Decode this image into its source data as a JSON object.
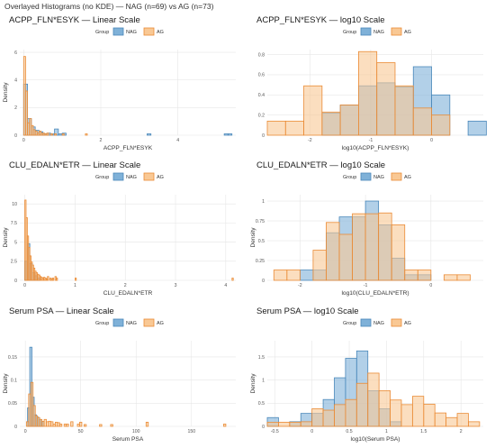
{
  "page_title": "Overlayed Histograms (no KDE) — NAG (n=69) vs AG (n=73)",
  "colors": {
    "NAG_fill": "#7fb1d8",
    "NAG_stroke": "#4a88ba",
    "AG_fill": "#f9c894",
    "AG_stroke": "#ea8b35",
    "overlap_fill": "#b6a698"
  },
  "legend": {
    "title": "Group",
    "labels": [
      "NAG",
      "AG"
    ]
  },
  "chart_data": [
    {
      "type": "bar",
      "title": "ACPP_FLN*ESYK — Linear Scale",
      "xlabel": "ACPP_FLN*ESYK",
      "ylabel": "Density",
      "xlim": [
        -0.1,
        5.5
      ],
      "ylim": [
        0,
        6.2
      ],
      "xticks": [
        0,
        2,
        4
      ],
      "yticks": [
        0,
        2,
        4,
        6
      ],
      "series": [
        {
          "name": "NAG",
          "bins": [
            [
              0.0,
              0.1,
              3.7
            ],
            [
              0.1,
              0.2,
              1.2
            ],
            [
              0.2,
              0.3,
              0.6
            ],
            [
              0.3,
              0.4,
              0.35
            ],
            [
              0.4,
              0.5,
              0.25
            ],
            [
              0.5,
              0.6,
              0.1
            ],
            [
              0.6,
              0.7,
              0.15
            ],
            [
              0.7,
              0.8,
              0.1
            ],
            [
              0.8,
              0.9,
              0.45
            ],
            [
              0.9,
              1.0,
              0.1
            ],
            [
              1.0,
              1.1,
              0.15
            ],
            [
              3.2,
              3.3,
              0.1
            ],
            [
              5.2,
              5.3,
              0.1
            ],
            [
              5.3,
              5.4,
              0.1
            ]
          ]
        },
        {
          "name": "AG",
          "bins": [
            [
              0.0,
              0.05,
              5.7
            ],
            [
              0.05,
              0.1,
              3.2
            ],
            [
              0.1,
              0.15,
              0.9
            ],
            [
              0.15,
              0.2,
              1.2
            ],
            [
              0.2,
              0.25,
              0.7
            ],
            [
              0.25,
              0.3,
              0.4
            ],
            [
              0.3,
              0.35,
              0.3
            ],
            [
              0.35,
              0.4,
              0.15
            ],
            [
              0.4,
              0.45,
              0.3
            ],
            [
              0.45,
              0.5,
              0.15
            ],
            [
              0.5,
              0.55,
              0.15
            ],
            [
              0.55,
              0.6,
              0.1
            ],
            [
              0.6,
              0.65,
              0.15
            ],
            [
              0.7,
              0.75,
              0.1
            ],
            [
              0.8,
              0.85,
              0.1
            ],
            [
              1.0,
              1.05,
              0.1
            ],
            [
              1.6,
              1.65,
              0.1
            ]
          ]
        }
      ]
    },
    {
      "type": "bar",
      "title": "ACPP_FLN*ESYK — log10 Scale",
      "xlabel": "log10(ACPP_FLN*ESYK)",
      "ylabel": "",
      "xlim": [
        -2.7,
        0.85
      ],
      "ylim": [
        0,
        0.85
      ],
      "xticks": [
        -2,
        -1,
        0
      ],
      "yticks": [
        0,
        0.2,
        0.4,
        0.6,
        0.8
      ],
      "series": [
        {
          "name": "NAG",
          "bins": [
            [
              -1.8,
              -1.5,
              0.22
            ],
            [
              -1.5,
              -1.2,
              0.3
            ],
            [
              -1.2,
              -0.9,
              0.49
            ],
            [
              -0.9,
              -0.6,
              0.52
            ],
            [
              -0.6,
              -0.3,
              0.48
            ],
            [
              -0.3,
              0.0,
              0.68
            ],
            [
              0.0,
              0.3,
              0.4
            ],
            [
              0.3,
              0.6,
              0.0
            ],
            [
              0.6,
              0.9,
              0.14
            ]
          ]
        },
        {
          "name": "AG",
          "bins": [
            [
              -2.7,
              -2.4,
              0.14
            ],
            [
              -2.4,
              -2.1,
              0.14
            ],
            [
              -2.1,
              -1.8,
              0.49
            ],
            [
              -1.8,
              -1.5,
              0.23
            ],
            [
              -1.5,
              -1.2,
              0.3
            ],
            [
              -1.2,
              -0.9,
              0.83
            ],
            [
              -0.9,
              -0.6,
              0.72
            ],
            [
              -0.6,
              -0.3,
              0.49
            ],
            [
              -0.3,
              0.0,
              0.27
            ],
            [
              0.0,
              0.3,
              0.2
            ]
          ]
        }
      ]
    },
    {
      "type": "bar",
      "title": "CLU_EDALN*ETR — Linear Scale",
      "xlabel": "CLU_EDALN*ETR",
      "ylabel": "Density",
      "xlim": [
        -0.1,
        4.2
      ],
      "ylim": [
        0,
        11.2
      ],
      "xticks": [
        0,
        1,
        2,
        3,
        4
      ],
      "yticks": [
        0.0,
        2.5,
        5.0,
        7.5,
        10.0
      ],
      "series": [
        {
          "name": "NAG",
          "bins": [
            [
              0.0,
              0.05,
              2.5
            ],
            [
              0.05,
              0.1,
              4.8
            ],
            [
              0.1,
              0.15,
              2.2
            ],
            [
              0.15,
              0.2,
              1.0
            ],
            [
              0.2,
              0.25,
              0.6
            ],
            [
              0.25,
              0.3,
              0.3
            ]
          ]
        },
        {
          "name": "AG",
          "bins": [
            [
              0.0,
              0.025,
              10.5
            ],
            [
              0.025,
              0.05,
              8.2
            ],
            [
              0.05,
              0.075,
              5.8
            ],
            [
              0.075,
              0.1,
              4.3
            ],
            [
              0.1,
              0.125,
              3.2
            ],
            [
              0.125,
              0.15,
              2.4
            ],
            [
              0.15,
              0.175,
              2.0
            ],
            [
              0.175,
              0.2,
              1.6
            ],
            [
              0.2,
              0.225,
              1.2
            ],
            [
              0.225,
              0.25,
              1.0
            ],
            [
              0.25,
              0.275,
              0.8
            ],
            [
              0.275,
              0.3,
              0.7
            ],
            [
              0.3,
              0.325,
              0.5
            ],
            [
              0.325,
              0.35,
              0.4
            ],
            [
              0.35,
              0.375,
              0.3
            ],
            [
              0.375,
              0.4,
              0.4
            ],
            [
              0.4,
              0.425,
              0.3
            ],
            [
              0.425,
              0.45,
              0.2
            ],
            [
              0.45,
              0.475,
              0.5
            ],
            [
              0.5,
              0.525,
              0.3
            ],
            [
              0.525,
              0.55,
              0.2
            ],
            [
              0.55,
              0.575,
              0.3
            ],
            [
              0.6,
              0.625,
              0.5
            ],
            [
              0.625,
              0.65,
              0.3
            ],
            [
              1.0,
              1.025,
              0.3
            ],
            [
              4.125,
              4.15,
              0.3
            ]
          ]
        }
      ]
    },
    {
      "type": "bar",
      "title": "CLU_EDALN*ETR — log10 Scale",
      "xlabel": "log10(CLU_EDALN*ETR)",
      "ylabel": "Density",
      "xlim": [
        -2.5,
        0.8
      ],
      "ylim": [
        0,
        1.08
      ],
      "xticks": [
        -2,
        -1,
        0
      ],
      "yticks": [
        0.0,
        0.25,
        0.5,
        0.75,
        1.0
      ],
      "series": [
        {
          "name": "NAG",
          "bins": [
            [
              -2.0,
              -1.8,
              0.13
            ],
            [
              -1.8,
              -1.6,
              0.13
            ],
            [
              -1.6,
              -1.4,
              0.6
            ],
            [
              -1.4,
              -1.2,
              0.8
            ],
            [
              -1.2,
              -1.0,
              0.8
            ],
            [
              -1.0,
              -0.8,
              1.0
            ],
            [
              -0.8,
              -0.6,
              0.7
            ],
            [
              -0.6,
              -0.4,
              0.28
            ],
            [
              -0.4,
              -0.2,
              0.07
            ],
            [
              -0.2,
              0.0,
              0.07
            ]
          ]
        },
        {
          "name": "AG",
          "bins": [
            [
              -2.4,
              -2.2,
              0.13
            ],
            [
              -2.2,
              -2.0,
              0.13
            ],
            [
              -1.8,
              -1.6,
              0.38
            ],
            [
              -1.6,
              -1.4,
              0.73
            ],
            [
              -1.4,
              -1.2,
              0.58
            ],
            [
              -1.2,
              -1.0,
              0.84
            ],
            [
              -1.0,
              -0.8,
              0.84
            ],
            [
              -0.8,
              -0.6,
              0.85
            ],
            [
              -0.6,
              -0.4,
              0.7
            ],
            [
              -0.4,
              -0.2,
              0.13
            ],
            [
              -0.2,
              0.0,
              0.13
            ],
            [
              0.2,
              0.4,
              0.07
            ],
            [
              0.4,
              0.6,
              0.07
            ]
          ]
        }
      ]
    },
    {
      "type": "bar",
      "title": "Serum PSA — Linear Scale",
      "xlabel": "Serum PSA",
      "ylabel": "Density",
      "xlim": [
        -5,
        190
      ],
      "ylim": [
        0,
        0.185
      ],
      "xticks": [
        0,
        50,
        100,
        150
      ],
      "yticks": [
        0.0,
        0.05,
        0.1,
        0.15
      ],
      "series": [
        {
          "name": "NAG",
          "bins": [
            [
              2,
              4,
              0.04
            ],
            [
              4,
              6,
              0.171
            ],
            [
              6,
              8,
              0.063
            ],
            [
              8,
              10,
              0.025
            ],
            [
              10,
              12,
              0.02
            ],
            [
              12,
              14,
              0.015
            ],
            [
              14,
              16,
              0.01
            ]
          ]
        },
        {
          "name": "AG",
          "bins": [
            [
              1,
              3,
              0.01
            ],
            [
              3,
              5,
              0.07
            ],
            [
              5,
              7,
              0.095
            ],
            [
              7,
              9,
              0.045
            ],
            [
              9,
              11,
              0.023
            ],
            [
              11,
              13,
              0.019
            ],
            [
              13,
              15,
              0.015
            ],
            [
              15,
              17,
              0.011
            ],
            [
              17,
              19,
              0.015
            ],
            [
              19,
              21,
              0.01
            ],
            [
              21,
              23,
              0.011
            ],
            [
              23,
              25,
              0.01
            ],
            [
              25,
              27,
              0.005
            ],
            [
              27,
              29,
              0.009
            ],
            [
              29,
              31,
              0.008
            ],
            [
              31,
              33,
              0.005
            ],
            [
              35,
              37,
              0.005
            ],
            [
              37,
              39,
              0.005
            ],
            [
              41,
              43,
              0.01
            ],
            [
              47,
              49,
              0.005
            ],
            [
              49,
              51,
              0.009
            ],
            [
              53,
              55,
              0.004
            ],
            [
              67,
              69,
              0.004
            ],
            [
              77,
              79,
              0.004
            ],
            [
              109,
              111,
              0.009
            ],
            [
              179,
              181,
              0.005
            ]
          ]
        }
      ]
    },
    {
      "type": "bar",
      "title": "Serum PSA — log10 Scale",
      "xlabel": "log10(Serum PSA)",
      "ylabel": "Density",
      "xlim": [
        -0.6,
        2.3
      ],
      "ylim": [
        0,
        1.85
      ],
      "xticks": [
        -0.5,
        0.0,
        0.5,
        1.0,
        1.5,
        2.0
      ],
      "yticks": [
        0.0,
        0.5,
        1.0,
        1.5
      ],
      "series": [
        {
          "name": "NAG",
          "bins": [
            [
              -0.6,
              -0.45,
              0.19
            ],
            [
              -0.45,
              -0.3,
              0.0
            ],
            [
              -0.3,
              -0.15,
              0.1
            ],
            [
              -0.15,
              0.0,
              0.28
            ],
            [
              0.0,
              0.15,
              0.28
            ],
            [
              0.15,
              0.3,
              0.58
            ],
            [
              0.3,
              0.45,
              1.05
            ],
            [
              0.45,
              0.6,
              1.47
            ],
            [
              0.6,
              0.75,
              1.63
            ],
            [
              0.75,
              0.9,
              0.77
            ],
            [
              0.9,
              1.05,
              0.38
            ],
            [
              1.05,
              1.2,
              0.1
            ]
          ]
        },
        {
          "name": "AG",
          "bins": [
            [
              -0.6,
              -0.45,
              0.09
            ],
            [
              -0.45,
              -0.3,
              0.09
            ],
            [
              -0.3,
              -0.15,
              0.09
            ],
            [
              -0.15,
              0.0,
              0.1
            ],
            [
              0.0,
              0.15,
              0.38
            ],
            [
              0.15,
              0.3,
              0.35
            ],
            [
              0.3,
              0.45,
              0.47
            ],
            [
              0.45,
              0.6,
              0.58
            ],
            [
              0.6,
              0.75,
              0.93
            ],
            [
              0.75,
              0.9,
              1.15
            ],
            [
              0.9,
              1.05,
              0.77
            ],
            [
              1.05,
              1.2,
              0.57
            ],
            [
              1.2,
              1.35,
              0.47
            ],
            [
              1.35,
              1.5,
              0.65
            ],
            [
              1.5,
              1.65,
              0.48
            ],
            [
              1.65,
              1.8,
              0.29
            ],
            [
              1.8,
              1.95,
              0.19
            ],
            [
              1.95,
              2.1,
              0.28
            ],
            [
              2.1,
              2.25,
              0.1
            ]
          ]
        }
      ]
    }
  ]
}
